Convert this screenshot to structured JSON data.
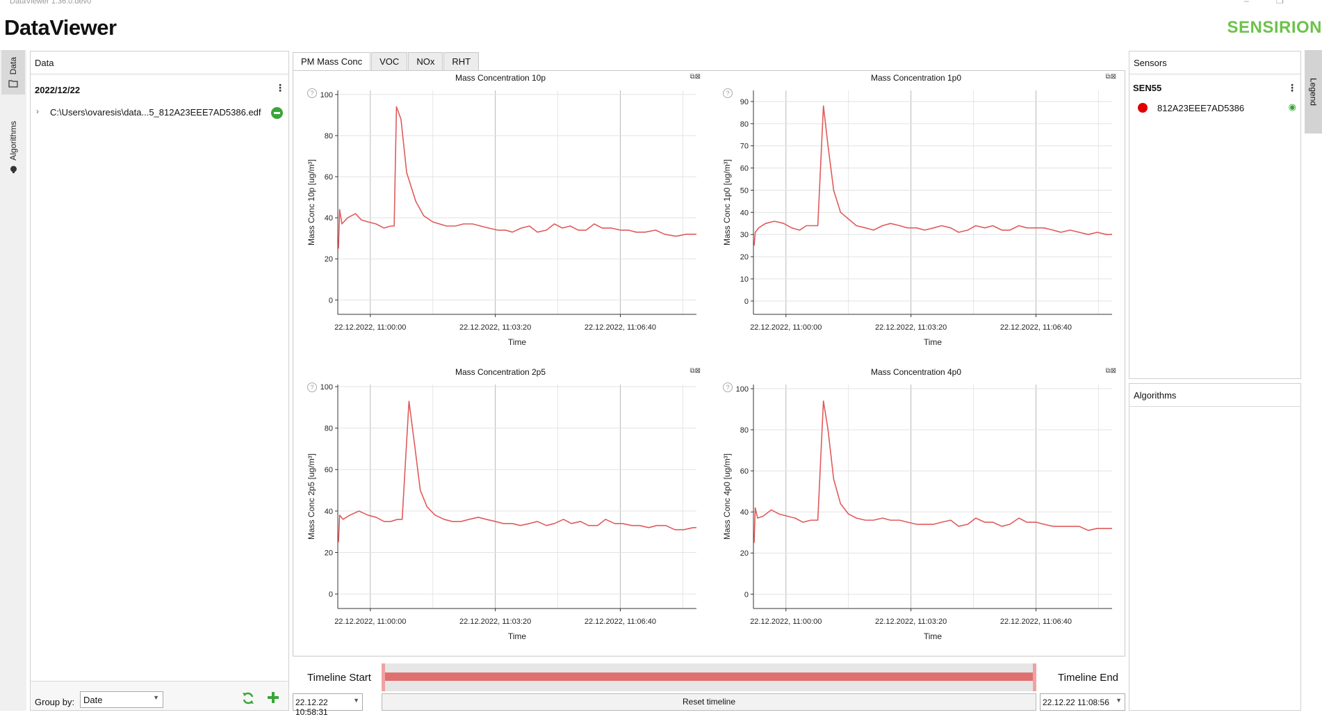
{
  "window": {
    "title": "DataViewer 1.36.0.dev0",
    "controls": [
      "–",
      "❐"
    ]
  },
  "header": {
    "app_title": "DataViewer",
    "brand": "SENSIRION"
  },
  "left_tabs": [
    {
      "label": "Data",
      "icon": "folder-icon",
      "active": true
    },
    {
      "label": "Algorithms",
      "icon": "brain-icon",
      "active": false
    }
  ],
  "data_panel": {
    "title": "Data",
    "group_date": "2022/12/22",
    "kebab": "⋮",
    "file": {
      "chevron": "›",
      "name": "C:\\Users\\ovaresis\\data...5_812A23EEE7AD5386.edf"
    },
    "group_by_label": "Group by:",
    "group_by_value": "Date",
    "dropdown_arrow": "▼"
  },
  "tabs": [
    {
      "label": "PM Mass Conc",
      "active": true
    },
    {
      "label": "VOC",
      "active": false
    },
    {
      "label": "NOx",
      "active": false
    },
    {
      "label": "RHT",
      "active": false
    }
  ],
  "chart_help": "?",
  "chart_buttons": "⧉⊠",
  "chart_data": [
    {
      "type": "line",
      "title": "Mass Concentration 10p",
      "xlabel": "Time",
      "ylabel": "Mass Conc 10p [ug/m³]",
      "ylim": [
        -7,
        102
      ],
      "yticks": [
        0,
        20,
        40,
        60,
        80,
        100
      ],
      "xticks": [
        "22.12.2022, 11:00:00",
        "22.12.2022, 11:03:20",
        "22.12.2022, 11:06:40"
      ],
      "grid": true,
      "color": "#e05a5a",
      "series": [
        {
          "x_minutes": [
            0,
            0.1,
            0.3,
            0.8,
            1.5,
            2,
            2.6,
            3.3,
            4,
            4.6,
            4.9,
            5.1,
            5.5,
            6,
            6.8,
            7.5,
            8.3,
            9.5,
            10.3,
            11,
            11.8,
            12.5,
            13.2,
            14,
            14.7,
            15.3,
            16.1,
            16.8,
            17.5,
            18.3,
            19,
            19.7,
            20.4,
            21.1,
            21.8,
            22.5,
            23.2,
            24,
            24.8,
            25.5,
            26.2,
            27,
            27.9,
            28.7,
            29.7,
            30.6,
            31.5
          ],
          "values": [
            25,
            44,
            37,
            40,
            42,
            39,
            38,
            37,
            35,
            36,
            36,
            94,
            88,
            62,
            48,
            41,
            38,
            36,
            36,
            37,
            37,
            36,
            35,
            34,
            34,
            33,
            35,
            36,
            33,
            34,
            37,
            35,
            36,
            34,
            34,
            37,
            35,
            35,
            34,
            34,
            33,
            33,
            34,
            32,
            31,
            32,
            32
          ]
        }
      ]
    },
    {
      "type": "line",
      "title": "Mass Concentration 1p0",
      "xlabel": "Time",
      "ylabel": "Mass Conc 1p0 [ug/m³]",
      "ylim": [
        -6,
        95
      ],
      "yticks": [
        0,
        10,
        20,
        30,
        40,
        50,
        60,
        70,
        80,
        90
      ],
      "xticks": [
        "22.12.2022, 11:00:00",
        "22.12.2022, 11:03:20",
        "22.12.2022, 11:06:40"
      ],
      "grid": true,
      "color": "#e05a5a",
      "series": [
        {
          "x_minutes": [
            0,
            0.1,
            0.4,
            1,
            1.8,
            2.6,
            3.3,
            4,
            4.6,
            5.2,
            5.6,
            6.1,
            6.5,
            7,
            7.6,
            8.3,
            9,
            9.8,
            10.5,
            11.3,
            12,
            12.8,
            13.5,
            14.3,
            15,
            15.8,
            16.5,
            17.3,
            18,
            18.8,
            19.5,
            20.3,
            21,
            21.8,
            22.5,
            23.3,
            24,
            24.8,
            25.5,
            26.3,
            27,
            27.8,
            28.6,
            29.4,
            30.2,
            31,
            31.5
          ],
          "values": [
            25,
            31,
            33,
            35,
            36,
            35,
            33,
            32,
            34,
            34,
            34,
            88,
            70,
            50,
            40,
            37,
            34,
            33,
            32,
            34,
            35,
            34,
            33,
            33,
            32,
            33,
            34,
            33,
            31,
            32,
            34,
            33,
            34,
            32,
            32,
            34,
            33,
            33,
            33,
            32,
            31,
            32,
            31,
            30,
            31,
            30,
            30
          ]
        }
      ]
    },
    {
      "type": "line",
      "title": "Mass Concentration 2p5",
      "xlabel": "Time",
      "ylabel": "Mass Conc 2p5 [ug/m³]",
      "ylim": [
        -7,
        101
      ],
      "yticks": [
        0,
        20,
        40,
        60,
        80,
        100
      ],
      "xticks": [
        "22.12.2022, 11:00:00",
        "22.12.2022, 11:03:20",
        "22.12.2022, 11:06:40"
      ],
      "grid": true,
      "color": "#e05a5a",
      "series": [
        {
          "x_minutes": [
            0,
            0.1,
            0.4,
            1,
            1.8,
            2.6,
            3.3,
            4,
            4.6,
            5.2,
            5.6,
            6.2,
            6.7,
            7.2,
            7.8,
            8.5,
            9.3,
            10,
            10.8,
            11.5,
            12.3,
            13,
            13.8,
            14.5,
            15.3,
            16,
            16.8,
            17.5,
            18.3,
            19,
            19.8,
            20.5,
            21.3,
            22,
            22.8,
            23.5,
            24.3,
            25,
            25.8,
            26.5,
            27.3,
            28,
            28.8,
            29.6,
            30.4,
            31.2,
            31.5
          ],
          "values": [
            25,
            38,
            36,
            38,
            40,
            38,
            37,
            35,
            35,
            36,
            36,
            93,
            72,
            50,
            42,
            38,
            36,
            35,
            35,
            36,
            37,
            36,
            35,
            34,
            34,
            33,
            34,
            35,
            33,
            34,
            36,
            34,
            35,
            33,
            33,
            36,
            34,
            34,
            33,
            33,
            32,
            33,
            33,
            31,
            31,
            32,
            32
          ]
        }
      ]
    },
    {
      "type": "line",
      "title": "Mass Concentration 4p0",
      "xlabel": "Time",
      "ylabel": "Mass Conc 4p0 [ug/m³]",
      "ylim": [
        -7,
        102
      ],
      "yticks": [
        0,
        20,
        40,
        60,
        80,
        100
      ],
      "xticks": [
        "22.12.2022, 11:00:00",
        "22.12.2022, 11:03:20",
        "22.12.2022, 11:06:40"
      ],
      "grid": true,
      "color": "#e05a5a",
      "series": [
        {
          "x_minutes": [
            0,
            0.1,
            0.3,
            0.8,
            1.5,
            2.2,
            2.9,
            3.6,
            4.3,
            5,
            5.6,
            6.1,
            6.5,
            7,
            7.6,
            8.3,
            9,
            9.8,
            10.5,
            11.3,
            12,
            12.8,
            13.5,
            14.3,
            15,
            15.8,
            16.5,
            17.3,
            18,
            18.8,
            19.5,
            20.3,
            21,
            21.8,
            22.5,
            23.3,
            24,
            24.8,
            25.5,
            26.3,
            27,
            27.8,
            28.6,
            29.4,
            30.2,
            31,
            31.5
          ],
          "values": [
            25,
            42,
            37,
            38,
            41,
            39,
            38,
            37,
            35,
            36,
            36,
            94,
            80,
            56,
            44,
            39,
            37,
            36,
            36,
            37,
            36,
            36,
            35,
            34,
            34,
            34,
            35,
            36,
            33,
            34,
            37,
            35,
            35,
            33,
            34,
            37,
            35,
            35,
            34,
            33,
            33,
            33,
            33,
            31,
            32,
            32,
            32
          ]
        }
      ]
    }
  ],
  "timeline": {
    "start_label": "Timeline Start",
    "end_label": "Timeline End",
    "start_value": "22.12.22 10:58:31",
    "end_value": "22.12.22 11:08:56",
    "reset_label": "Reset timeline",
    "selection_fraction": [
      0,
      1
    ],
    "bar_color": "#e07070"
  },
  "sensor_panel": {
    "title": "Sensors",
    "group": "SEN55",
    "kebab": "⋮",
    "sensor": {
      "name": "812A23EEE7AD5386",
      "color": "#e00000",
      "eye": "◉"
    }
  },
  "algorithms_panel": {
    "title": "Algorithms"
  },
  "right_tab": {
    "label": "Legend"
  }
}
